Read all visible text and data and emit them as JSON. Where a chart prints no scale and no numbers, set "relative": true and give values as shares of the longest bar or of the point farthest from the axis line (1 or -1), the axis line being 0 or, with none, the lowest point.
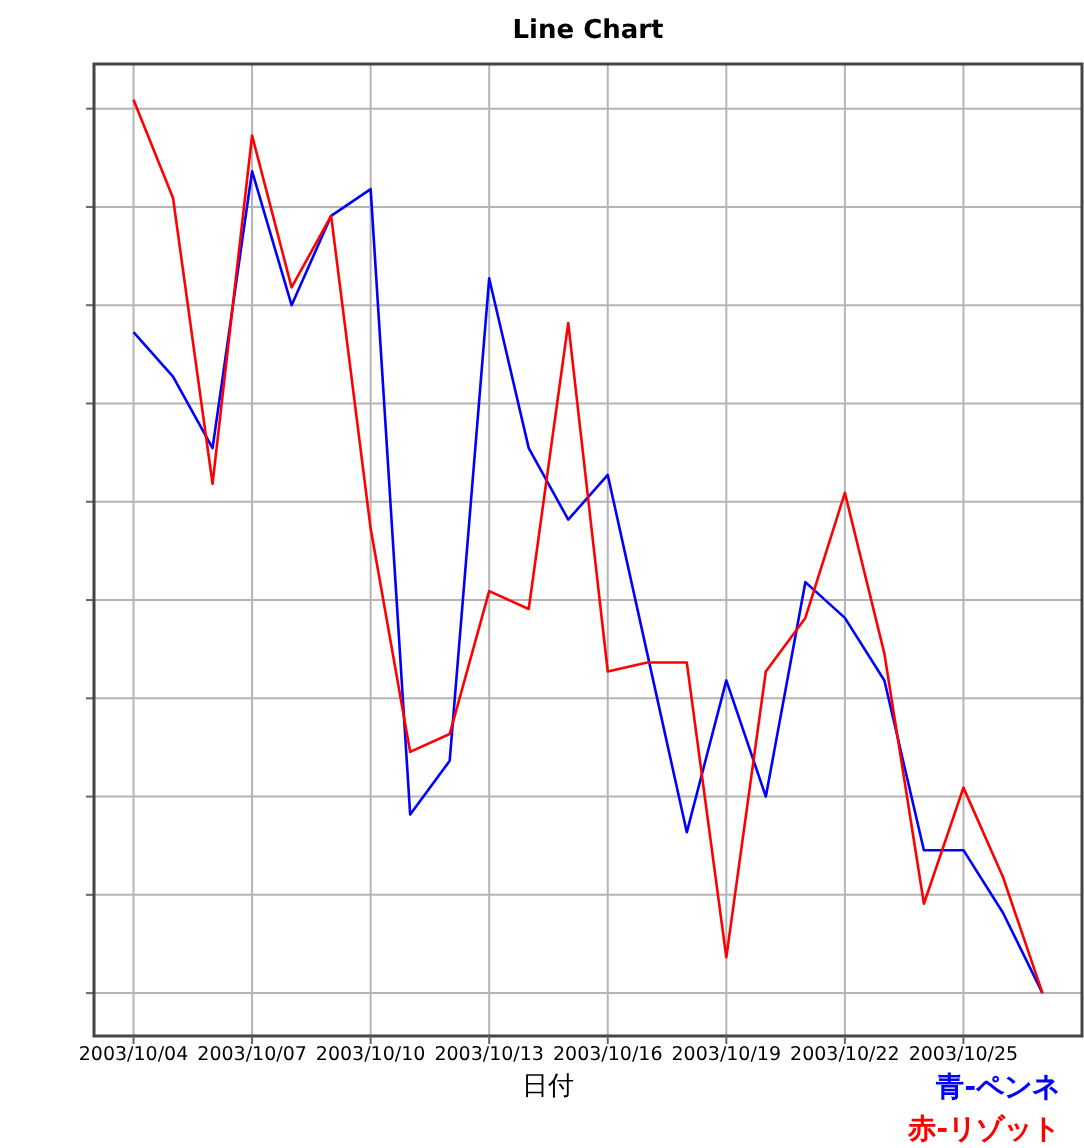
{
  "chart_data": {
    "type": "line",
    "title": "Line Chart",
    "xlabel": "日付",
    "relative": true,
    "grid": true,
    "legend": "bottom right",
    "marker": "none",
    "line_style": "solid",
    "x": [
      "2003-10-04",
      "2003-10-05",
      "2003-10-06",
      "2003-10-07",
      "2003-10-08",
      "2003-10-09",
      "2003-10-10",
      "2003-10-11",
      "2003-10-12",
      "2003-10-13",
      "2003-10-14",
      "2003-10-15",
      "2003-10-16",
      "2003-10-17",
      "2003-10-18",
      "2003-10-19",
      "2003-10-20",
      "2003-10-21",
      "2003-10-22",
      "2003-10-23",
      "2003-10-24",
      "2003-10-25",
      "2003-10-26",
      "2003-10-27"
    ],
    "xlim": [
      "2003-10-03",
      "2003-10-28"
    ],
    "xticks": [
      {
        "value": "2003-10-04",
        "label": "2003/10/04"
      },
      {
        "value": "2003-10-07",
        "label": "2003/10/07"
      },
      {
        "value": "2003-10-10",
        "label": "2003/10/10"
      },
      {
        "value": "2003-10-13",
        "label": "2003/10/13"
      },
      {
        "value": "2003-10-16",
        "label": "2003/10/16"
      },
      {
        "value": "2003-10-19",
        "label": "2003/10/19"
      },
      {
        "value": "2003-10-22",
        "label": "2003/10/22"
      },
      {
        "value": "2003-10-25",
        "label": "2003/10/25"
      }
    ],
    "series": [
      {
        "name": "青-ペンネ",
        "color": "#0000ff",
        "values": [
          0.74,
          0.69,
          0.61,
          0.92,
          0.77,
          0.87,
          0.9,
          0.2,
          0.26,
          0.8,
          0.61,
          0.53,
          0.58,
          0.38,
          0.18,
          0.35,
          0.22,
          0.46,
          0.42,
          0.35,
          0.16,
          0.16,
          0.09,
          0
        ]
      },
      {
        "name": "赤-リゾット",
        "color": "#ff0000",
        "values": [
          1,
          0.89,
          0.57,
          0.96,
          0.79,
          0.87,
          0.52,
          0.27,
          0.29,
          0.45,
          0.43,
          0.75,
          0.36,
          0.37,
          0.37,
          0.04,
          0.36,
          0.42,
          0.56,
          0.38,
          0.1,
          0.23,
          0.13,
          0
        ]
      }
    ]
  }
}
